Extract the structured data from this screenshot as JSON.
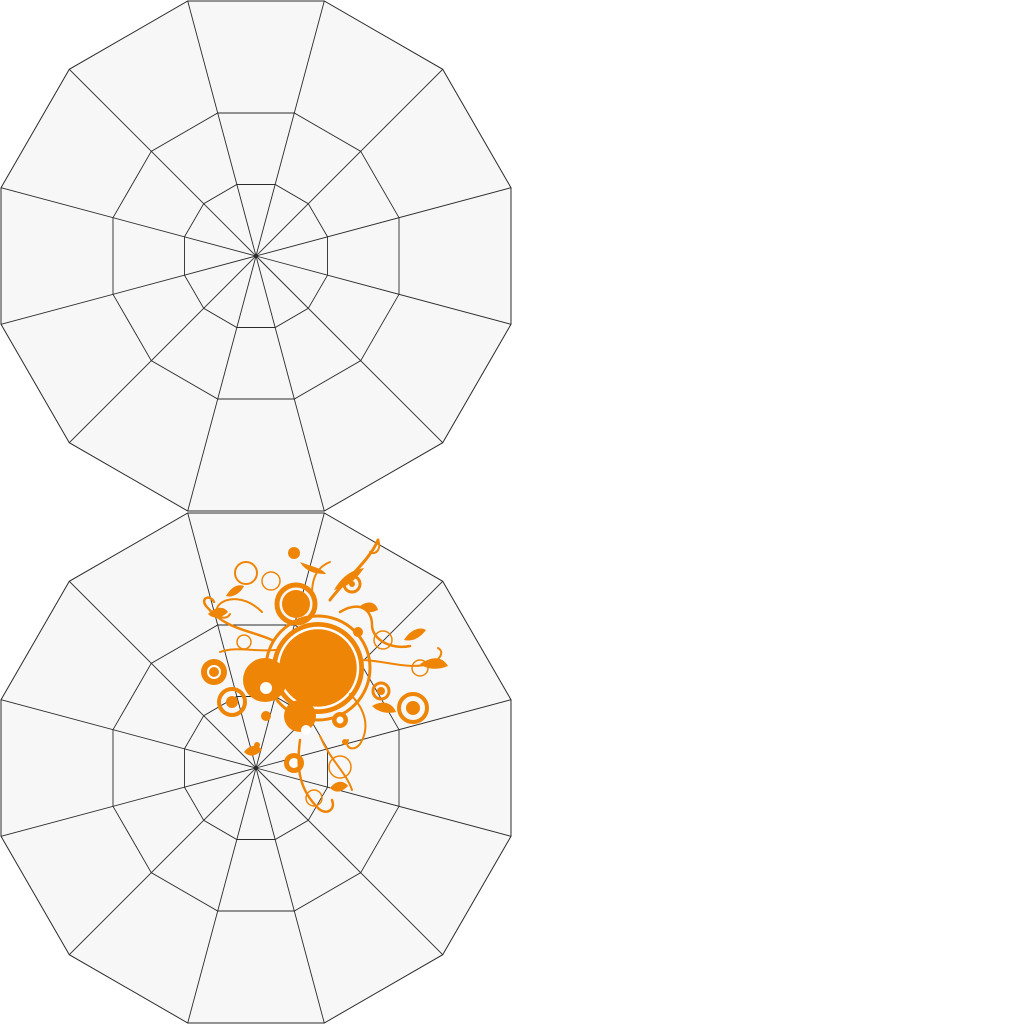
{
  "webs": [
    {
      "id": "top-web",
      "has_decoration": false
    },
    {
      "id": "bottom-web",
      "has_decoration": true
    }
  ],
  "web": {
    "sides": 12,
    "rings": 3,
    "fill": "#f7f7f7",
    "line": "#2b2b2b"
  },
  "decoration": {
    "name": "orange-swirl-ornament",
    "color": "#ef8506"
  }
}
